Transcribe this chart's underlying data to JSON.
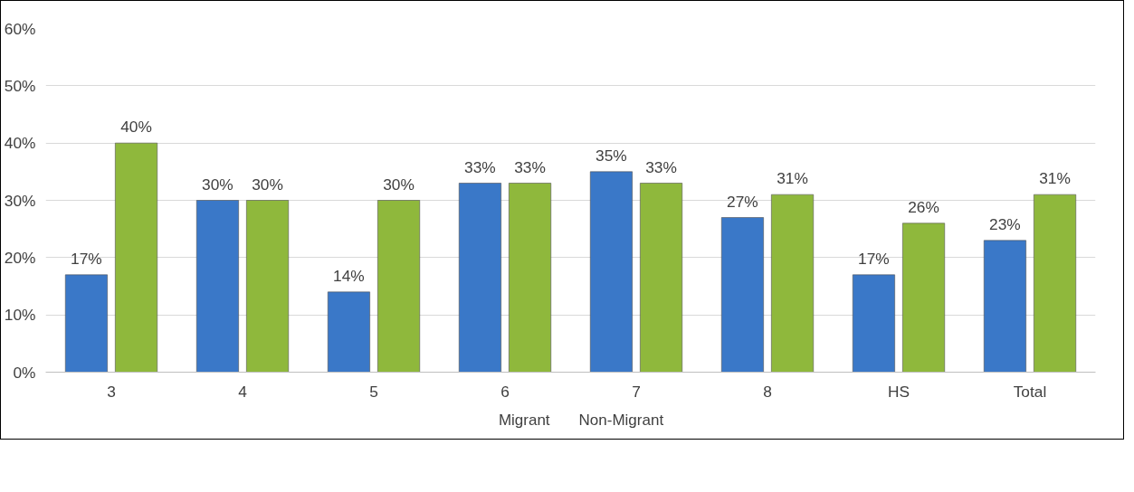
{
  "chart_data": {
    "type": "bar",
    "categories": [
      "3",
      "4",
      "5",
      "6",
      "7",
      "8",
      "HS",
      "Total"
    ],
    "series": [
      {
        "name": "Migrant",
        "color": "#3a78c8",
        "values": [
          17,
          30,
          14,
          33,
          35,
          27,
          17,
          23
        ],
        "value_labels": [
          "17%",
          "30%",
          "14%",
          "33%",
          "35%",
          "27%",
          "17%",
          "23%"
        ]
      },
      {
        "name": "Non-Migrant",
        "color": "#8fb83c",
        "values": [
          40,
          30,
          30,
          33,
          33,
          31,
          26,
          31
        ],
        "value_labels": [
          "40%",
          "30%",
          "30%",
          "33%",
          "33%",
          "31%",
          "26%",
          "31%"
        ]
      }
    ],
    "ylim": [
      0,
      60
    ],
    "yticks": [
      {
        "value": 0,
        "label": "0%"
      },
      {
        "value": 10,
        "label": "10%"
      },
      {
        "value": 20,
        "label": "20%"
      },
      {
        "value": 30,
        "label": "30%"
      },
      {
        "value": 40,
        "label": "40%"
      },
      {
        "value": 50,
        "label": "50%"
      },
      {
        "value": 60,
        "label": "60%"
      }
    ],
    "grid": "y",
    "legend": "bottom"
  }
}
